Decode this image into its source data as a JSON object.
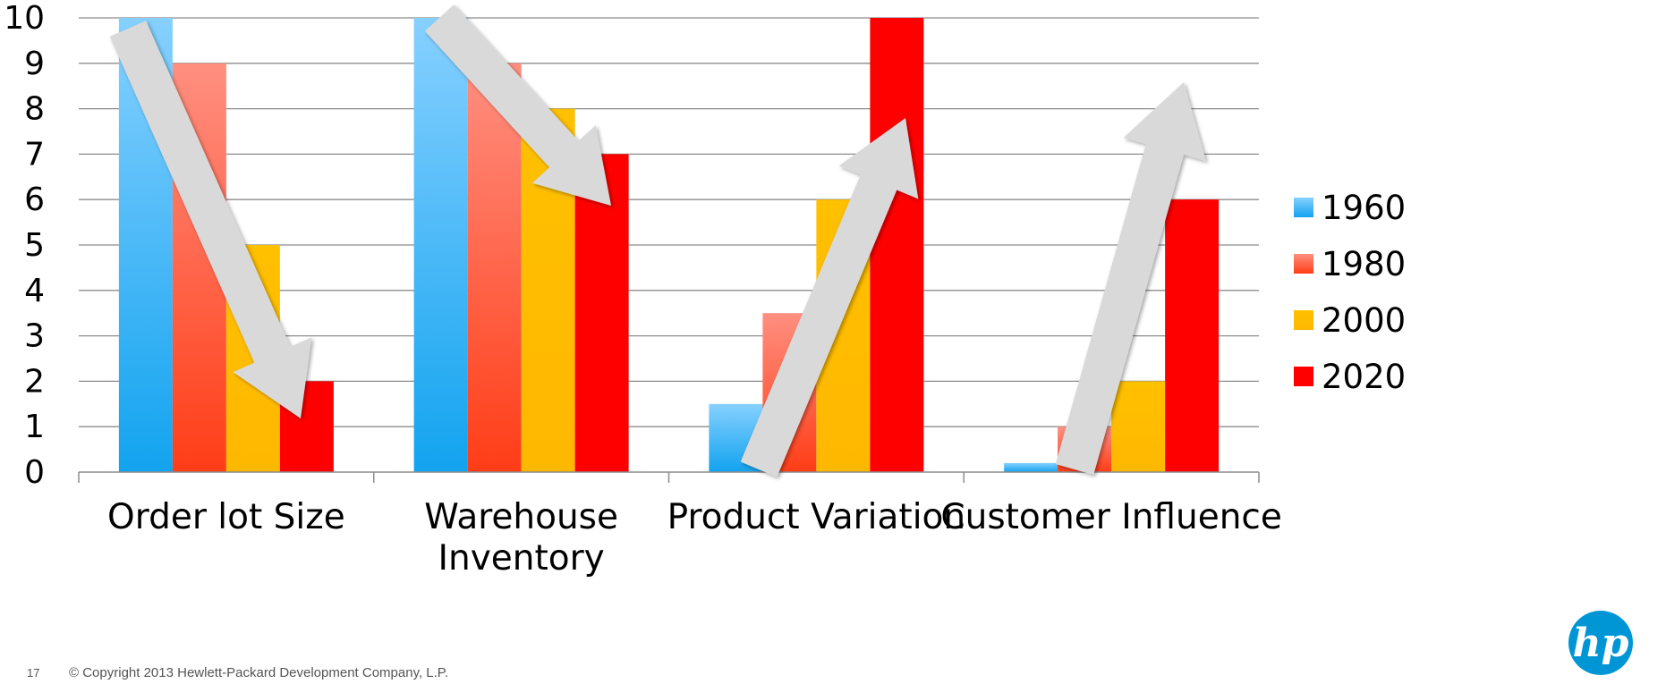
{
  "chart_data": {
    "type": "bar",
    "categories": [
      "Order lot Size",
      "Warehouse\nInventory",
      "Product Variation",
      "Customer Influence"
    ],
    "series": [
      {
        "name": "1960",
        "values": [
          10,
          10,
          1.5,
          0.2
        ]
      },
      {
        "name": "1980",
        "values": [
          9,
          9,
          3.5,
          1
        ]
      },
      {
        "name": "2000",
        "values": [
          5,
          8,
          6,
          2
        ]
      },
      {
        "name": "2020",
        "values": [
          2,
          7,
          10,
          6
        ]
      }
    ],
    "ylim": [
      0,
      10
    ],
    "yticks": [
      "0",
      "1",
      "2",
      "3",
      "4",
      "5",
      "6",
      "7",
      "8",
      "9",
      "10"
    ],
    "grid": true,
    "legend_position": "right",
    "colors": {
      "1960": {
        "top": "#86d0ff",
        "bottom": "#12a3ef"
      },
      "1980": {
        "top": "#ff8f80",
        "bottom": "#ff3d17"
      },
      "2000": {
        "top": "#ffc000",
        "bottom": "#ffb800"
      },
      "2020": {
        "top": "#ff0000",
        "bottom": "#ff0000"
      }
    },
    "trend_arrows": [
      {
        "category": "Order lot Size",
        "direction": "down"
      },
      {
        "category": "Warehouse\nInventory",
        "direction": "down"
      },
      {
        "category": "Product Variation",
        "direction": "up"
      },
      {
        "category": "Customer Influence",
        "direction": "up"
      }
    ]
  },
  "footer": {
    "slide_number": "17",
    "copyright": "© Copyright 2013 Hewlett-Packard Development Company, L.P."
  },
  "logo": {
    "text": "hp",
    "color": "#0096d6"
  }
}
